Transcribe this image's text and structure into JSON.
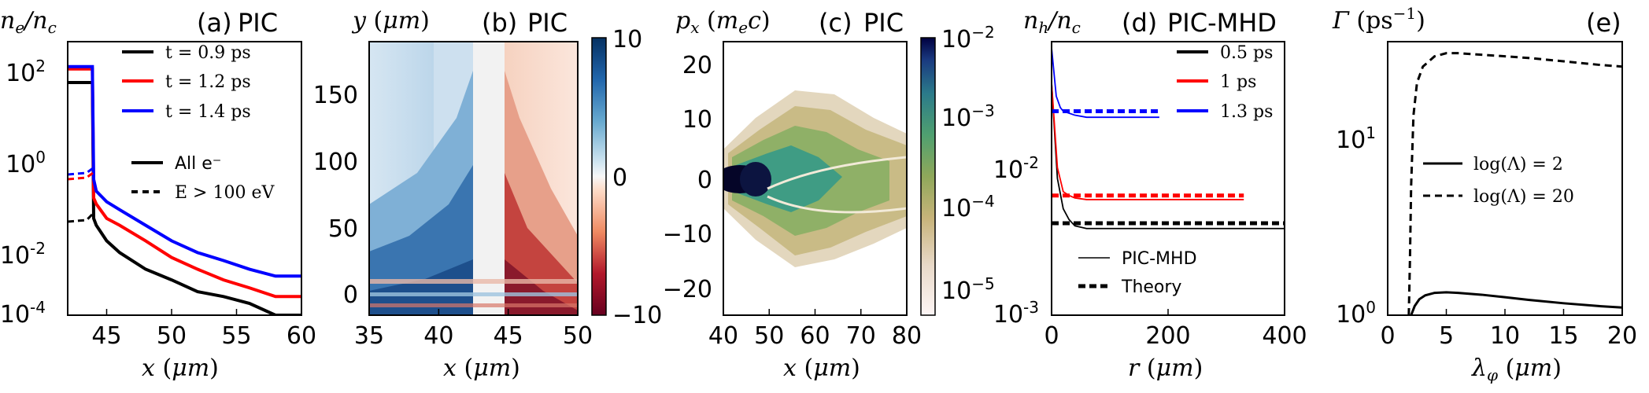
{
  "chart_data": [
    {
      "id": "a",
      "type": "line",
      "panel_label": "(a)",
      "title": "PIC",
      "xlabel": "x (μm)",
      "ylabel": "n_e/n_c",
      "yscale": "log",
      "xlim": [
        42,
        60
      ],
      "ylim": [
        0.0001,
        1000
      ],
      "xticks": [
        "45",
        "50",
        "55",
        "60"
      ],
      "yticks": [
        "10^2",
        "10^0",
        "10^-2",
        "10^-4"
      ],
      "legend_time": [
        "t = 0.9 ps",
        "t = 1.2 ps",
        "t = 1.4 ps"
      ],
      "legend_style": [
        "All e⁻",
        "E > 100 eV"
      ],
      "series": [
        {
          "name": "t = 0.9 ps",
          "color": "#000000",
          "style": "solid",
          "x": [
            42,
            43.9,
            44,
            44.2,
            45,
            46,
            48,
            50,
            52,
            54,
            56,
            58,
            60
          ],
          "y": [
            90,
            90,
            0.03,
            0.02,
            0.008,
            0.004,
            0.0015,
            0.0008,
            0.0004,
            0.0003,
            0.0002,
            0.0001,
            0.0001
          ]
        },
        {
          "name": "t = 1.2 ps",
          "color": "#ff0000",
          "style": "solid",
          "x": [
            42,
            43.9,
            44,
            44.2,
            45,
            46,
            48,
            50,
            52,
            54,
            56,
            58,
            60
          ],
          "y": [
            200,
            200,
            0.1,
            0.07,
            0.03,
            0.02,
            0.008,
            0.003,
            0.0015,
            0.0008,
            0.0005,
            0.0003,
            0.0003
          ]
        },
        {
          "name": "t = 1.4 ps",
          "color": "#0000ff",
          "style": "solid",
          "x": [
            42,
            43.9,
            44,
            44.2,
            45,
            46,
            48,
            50,
            52,
            54,
            56,
            58,
            60
          ],
          "y": [
            230,
            230,
            0.3,
            0.15,
            0.08,
            0.05,
            0.02,
            0.008,
            0.004,
            0.0025,
            0.0015,
            0.001,
            0.001
          ]
        }
      ]
    },
    {
      "id": "b",
      "type": "heatmap",
      "panel_label": "(b)",
      "title": "PIC",
      "xlabel": "x (μm)",
      "ylabel": "y (μm)",
      "xlim": [
        35,
        50
      ],
      "ylim": [
        -15,
        190
      ],
      "xticks": [
        "35",
        "40",
        "45",
        "50"
      ],
      "yticks": [
        "150",
        "100",
        "50",
        "0"
      ],
      "colorbar": {
        "min": -10,
        "max": 10,
        "ticks": [
          "10",
          "0",
          "−10"
        ],
        "colormap": "RdBu"
      }
    },
    {
      "id": "c",
      "type": "heatmap",
      "panel_label": "(c)",
      "title": "PIC",
      "xlabel": "x (μm)",
      "ylabel": "p_x (m_e c)",
      "xlim": [
        40,
        80
      ],
      "ylim": [
        -25,
        25
      ],
      "xticks": [
        "40",
        "50",
        "60",
        "70",
        "80"
      ],
      "yticks": [
        "20",
        "10",
        "0",
        "−10",
        "−20"
      ],
      "colorbar": {
        "scale": "log",
        "min": 5e-06,
        "max": 0.01,
        "ticks": [
          "10^-2",
          "10^-3",
          "10^-4",
          "10^-5"
        ],
        "colormap": "gist_earth_r"
      }
    },
    {
      "id": "d",
      "type": "line",
      "panel_label": "(d)",
      "title": "PIC-MHD",
      "xlabel": "r (μm)",
      "ylabel": "n_h/n_c",
      "yscale": "log",
      "xlim": [
        0,
        400
      ],
      "ylim": [
        0.001,
        0.1
      ],
      "xticks": [
        "0",
        "200",
        "400"
      ],
      "yticks": [
        "10^-2",
        "10^-3"
      ],
      "legend_time": [
        "0.5 ps",
        "1 ps",
        "1.3 ps"
      ],
      "legend_style": [
        "PIC-MHD",
        "Theory"
      ],
      "series": [
        {
          "name": "0.5 ps",
          "color": "#000000",
          "pic_r": [
            0,
            10,
            20,
            30,
            40,
            60,
            100,
            200,
            300,
            400
          ],
          "pic_y": [
            0.05,
            0.01,
            0.006,
            0.005,
            0.0045,
            0.0043,
            0.0043,
            0.0043,
            0.0043,
            0.0043
          ],
          "theory_y": 0.0047,
          "theory_r": [
            0,
            400
          ]
        },
        {
          "name": "1 ps",
          "color": "#ff0000",
          "pic_r": [
            0,
            10,
            20,
            30,
            40,
            60,
            100,
            200,
            330
          ],
          "pic_y": [
            0.05,
            0.012,
            0.008,
            0.0075,
            0.0072,
            0.007,
            0.007,
            0.007,
            0.007
          ],
          "theory_y": 0.0075,
          "theory_r": [
            0,
            330
          ]
        },
        {
          "name": "1.3 ps",
          "color": "#0000ff",
          "pic_r": [
            0,
            8,
            15,
            20,
            30,
            40,
            60,
            100,
            150,
            185
          ],
          "pic_y": [
            0.09,
            0.04,
            0.033,
            0.031,
            0.03,
            0.029,
            0.028,
            0.028,
            0.028,
            0.028
          ],
          "theory_y": 0.031,
          "theory_r": [
            0,
            185
          ]
        }
      ]
    },
    {
      "id": "e",
      "type": "line",
      "panel_label": "(e)",
      "title": "",
      "xlabel": "λ_φ (μm)",
      "ylabel": "Γ (ps⁻¹)",
      "yscale": "log",
      "xlim": [
        0,
        20
      ],
      "ylim": [
        1,
        30
      ],
      "xticks": [
        "0",
        "5",
        "10",
        "15",
        "20"
      ],
      "yticks": [
        "10^1",
        "10^0"
      ],
      "legend": [
        "log(Λ) = 2",
        "log(Λ) = 20"
      ],
      "series": [
        {
          "name": "log(Λ) = 2",
          "color": "#000000",
          "style": "solid",
          "x": [
            2.0,
            2.3,
            2.7,
            3.2,
            4,
            5,
            6,
            8,
            10,
            12,
            15,
            18,
            20
          ],
          "y": [
            1.0,
            1.12,
            1.22,
            1.28,
            1.32,
            1.33,
            1.32,
            1.29,
            1.25,
            1.21,
            1.16,
            1.12,
            1.1
          ]
        },
        {
          "name": "log(Λ) = 20",
          "color": "#000000",
          "style": "dashed",
          "x": [
            1.8,
            1.9,
            2.0,
            2.2,
            2.5,
            3,
            4,
            5,
            6,
            8,
            10,
            12,
            15,
            18,
            20
          ],
          "y": [
            1.0,
            2.0,
            5,
            12,
            18,
            22,
            25,
            26,
            26,
            25.5,
            25,
            24.5,
            23.5,
            22.5,
            22
          ]
        }
      ]
    }
  ],
  "colors": {
    "black": "#000000",
    "red": "#ff0000",
    "blue": "#0000ff"
  }
}
